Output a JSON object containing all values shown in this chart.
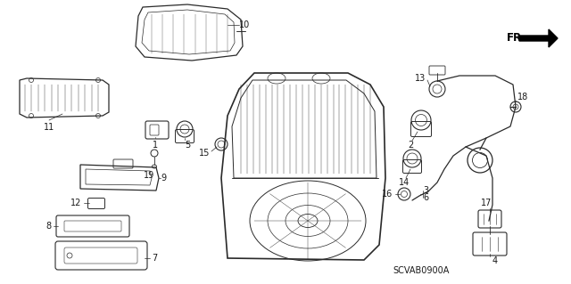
{
  "background_color": "#ffffff",
  "diagram_code": "SCVAB0900A",
  "line_color": "#2a2a2a",
  "text_color": "#1a1a1a",
  "font_size": 7.0,
  "fig_w": 6.4,
  "fig_h": 3.19,
  "dpi": 100
}
